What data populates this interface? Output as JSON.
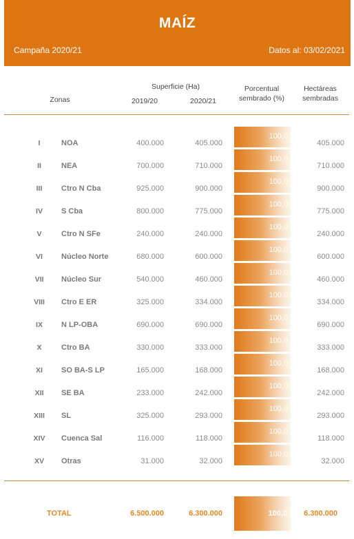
{
  "header": {
    "title": "MAÍZ",
    "campaign": "Campaña 2020/21",
    "date": "Datos al: 03/02/2021"
  },
  "columns": {
    "zones": "Zonas",
    "surface": "Superficie (Ha)",
    "year1": "2019/20",
    "year2": "2020/21",
    "pct_line1": "Porcentual",
    "pct_line2": "sembrado (%)",
    "ha_line1": "Hectáreas",
    "ha_line2": "sembradas"
  },
  "rows": [
    {
      "num": "I",
      "zone": "NOA",
      "s2019": "400.000",
      "s2020": "405.000",
      "pct": "100,0",
      "ha": "405.000"
    },
    {
      "num": "II",
      "zone": "NEA",
      "s2019": "700.000",
      "s2020": "710.000",
      "pct": "100,0",
      "ha": "710.000"
    },
    {
      "num": "III",
      "zone": "Ctro N Cba",
      "s2019": "925.000",
      "s2020": "900.000",
      "pct": "100,0",
      "ha": "900.000"
    },
    {
      "num": "IV",
      "zone": "S Cba",
      "s2019": "800.000",
      "s2020": "775.000",
      "pct": "100,0",
      "ha": "775.000"
    },
    {
      "num": "V",
      "zone": "Ctro N SFe",
      "s2019": "240.000",
      "s2020": "240.000",
      "pct": "100,0",
      "ha": "240.000"
    },
    {
      "num": "VI",
      "zone": "Núcleo Norte",
      "s2019": "680.000",
      "s2020": "600.000",
      "pct": "100,0",
      "ha": "600.000"
    },
    {
      "num": "VII",
      "zone": "Núcleo Sur",
      "s2019": "540.000",
      "s2020": "460.000",
      "pct": "100,0",
      "ha": "460.000"
    },
    {
      "num": "VIII",
      "zone": "Ctro E ER",
      "s2019": "325.000",
      "s2020": "334.000",
      "pct": "100,0",
      "ha": "334.000"
    },
    {
      "num": "IX",
      "zone": "N LP-OBA",
      "s2019": "690.000",
      "s2020": "690.000",
      "pct": "100,0",
      "ha": "690.000"
    },
    {
      "num": "X",
      "zone": "Ctro BA",
      "s2019": "330.000",
      "s2020": "333.000",
      "pct": "100,0",
      "ha": "333.000"
    },
    {
      "num": "XI",
      "zone": "SO BA-S LP",
      "s2019": "165.000",
      "s2020": "168.000",
      "pct": "100,0",
      "ha": "168.000"
    },
    {
      "num": "XII",
      "zone": "SE BA",
      "s2019": "233.000",
      "s2020": "242.000",
      "pct": "100,0",
      "ha": "242.000"
    },
    {
      "num": "XIII",
      "zone": "SL",
      "s2019": "325.000",
      "s2020": "293.000",
      "pct": "100,0",
      "ha": "293.000"
    },
    {
      "num": "XIV",
      "zone": "Cuenca Sal",
      "s2019": "116.000",
      "s2020": "118.000",
      "pct": "100,0",
      "ha": "118.000"
    },
    {
      "num": "XV",
      "zone": "Otras",
      "s2019": "31.000",
      "s2020": "32.000",
      "pct": "100,0",
      "ha": "32.000"
    }
  ],
  "total": {
    "label": "TOTAL",
    "s2019": "6.500.000",
    "s2020": "6.300.000",
    "pct": "100,0",
    "ha": "6.300.000"
  },
  "colors": {
    "header_bg": "#dd7512",
    "accent": "#e08a28"
  }
}
